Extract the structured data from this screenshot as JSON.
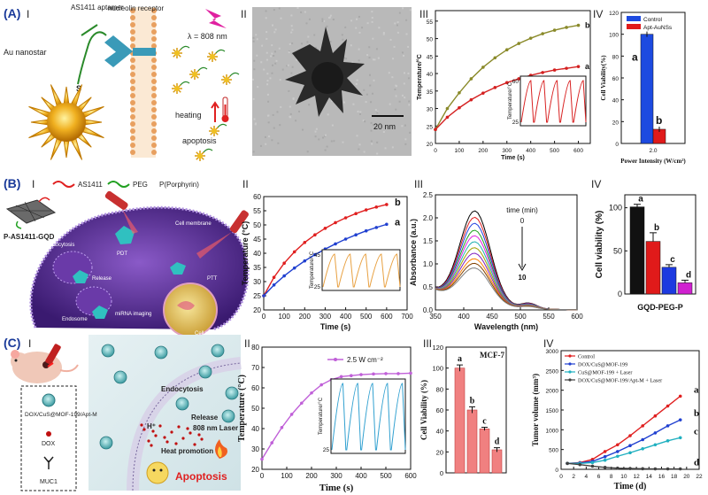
{
  "rowA": {
    "label": "(A)",
    "p1": {
      "num": "I",
      "aptamer": "AS1411 aptamer",
      "receptor": "nucleolin receptor",
      "nanostar": "Au nanostar",
      "s_label": "S",
      "laser": "λ = 808 nm",
      "heating": "heating",
      "apoptosis": "apoptosis"
    },
    "p2": {
      "num": "II",
      "scale": "20 nm"
    },
    "p3": {
      "num": "III"
    },
    "p4": {
      "num": "IV"
    }
  },
  "rowB": {
    "label": "(B)",
    "p1": {
      "num": "I",
      "legend": [
        "AS1411",
        "PEG",
        "P(Porphyrin)"
      ],
      "complex": "P-AS1411-GQD",
      "cell_membrane": "Cell membrane",
      "endocytosis": "Endocytosis",
      "endosome": "Endosome",
      "release": "Release",
      "mirna": "miRNA imaging",
      "nuclei": "Cell nuclei",
      "pdt": "PDT",
      "ptt": "PTT"
    },
    "p2": {
      "num": "II"
    },
    "p3": {
      "num": "III"
    },
    "p4": {
      "num": "IV"
    }
  },
  "rowC": {
    "label": "(C)",
    "p1": {
      "num": "I",
      "legend_title": "DOX/CuS@MOF-199/Apt-M",
      "legend_dox": "DOX",
      "legend_muc1": "MUC1",
      "endocytosis": "Endocytosis",
      "release": "Release",
      "laser": "808 nm Laser",
      "hplus": "H⁺",
      "heat": "Heat promotion",
      "apoptosis": "Apoptosis"
    },
    "p2": {
      "num": "II"
    },
    "p3": {
      "num": "III"
    },
    "p4": {
      "num": "IV"
    }
  },
  "chart_data": [
    {
      "id": "A-III",
      "type": "line",
      "xlabel": "Time (s)",
      "ylabel": "Temperature/°C",
      "xlim": [
        0,
        650
      ],
      "ylim": [
        20,
        58
      ],
      "xticks": [
        "0",
        "100",
        "200",
        "300",
        "400",
        "500",
        "600"
      ],
      "yticks": [
        "20",
        "25",
        "30",
        "35",
        "40",
        "45",
        "50",
        "55"
      ],
      "x": [
        0,
        50,
        100,
        150,
        200,
        250,
        300,
        350,
        400,
        450,
        500,
        550,
        600
      ],
      "series": [
        {
          "name": "b",
          "color": "#8a8a2a",
          "values": [
            24,
            30,
            34.5,
            38.5,
            41.8,
            44.5,
            46.8,
            48.6,
            50.1,
            51.4,
            52.4,
            53.2,
            53.8
          ]
        },
        {
          "name": "a",
          "color": "#d42020",
          "values": [
            24,
            27.5,
            30.2,
            32.5,
            34.4,
            36,
            37.4,
            38.5,
            39.5,
            40.3,
            41,
            41.5,
            42
          ]
        }
      ],
      "inset": {
        "ylabel": "Temperature/°C",
        "yticks": [
          "25",
          "60"
        ],
        "cycles": 5
      }
    },
    {
      "id": "A-IV",
      "type": "bar",
      "xlabel": "Power Intensity (W/cm²)",
      "ylabel": "Cell Viability(%)",
      "ylim": [
        0,
        120
      ],
      "yticks": [
        "0",
        "20",
        "40",
        "60",
        "80",
        "100",
        "120"
      ],
      "categories": [
        "2.0"
      ],
      "legend": [
        "Control",
        "Apt-AuNSs"
      ],
      "series": [
        {
          "name": "Control",
          "color": "#1d4ae0",
          "values": [
            100
          ],
          "label": "a"
        },
        {
          "name": "Apt-AuNSs",
          "color": "#e01a1a",
          "values": [
            13
          ],
          "label": "b"
        }
      ]
    },
    {
      "id": "B-II",
      "type": "line",
      "xlabel": "Time (s)",
      "ylabel": "Temperature (°C)",
      "xlim": [
        0,
        700
      ],
      "ylim": [
        20,
        60
      ],
      "xticks": [
        "0",
        "100",
        "200",
        "300",
        "400",
        "500",
        "600",
        "700"
      ],
      "yticks": [
        "20",
        "25",
        "30",
        "35",
        "40",
        "45",
        "50",
        "55",
        "60"
      ],
      "x": [
        0,
        50,
        100,
        150,
        200,
        250,
        300,
        350,
        400,
        450,
        500,
        550,
        600
      ],
      "series": [
        {
          "name": "b",
          "color": "#e02020",
          "values": [
            25,
            31.5,
            36.5,
            40.5,
            43.8,
            46.5,
            48.8,
            50.8,
            52.5,
            54,
            55.3,
            56.3,
            57.2
          ]
        },
        {
          "name": "a",
          "color": "#2040d0",
          "values": [
            25,
            28.8,
            32,
            34.8,
            37.3,
            39.5,
            41.5,
            43.3,
            45,
            46.5,
            47.9,
            49.1,
            50.2
          ]
        }
      ],
      "inset": {
        "ylabel": "Temperature/°C",
        "yticks": [
          "25",
          "45"
        ],
        "cycles": 5
      }
    },
    {
      "id": "B-III",
      "type": "line",
      "xlabel": "Wavelength (nm)",
      "ylabel": "Absorbance (a.u.)",
      "xlim": [
        350,
        600
      ],
      "ylim": [
        0,
        2.5
      ],
      "xticks": [
        "350",
        "400",
        "450",
        "500",
        "550",
        "600"
      ],
      "yticks": [
        "0.0",
        "0.5",
        "1.0",
        "1.5",
        "2.0",
        "2.5"
      ],
      "annotation": {
        "title": "time (min)",
        "start": "0",
        "end": "10"
      },
      "peak_nm": 420,
      "peaks": [
        2.02,
        1.88,
        1.75,
        1.6,
        1.48,
        1.35,
        1.22,
        1.1,
        0.98,
        0.88,
        0.78
      ],
      "colors": [
        "#000000",
        "#e02020",
        "#2040e0",
        "#20a020",
        "#e020e0",
        "#20b0b0",
        "#a0a000",
        "#8020c0",
        "#ff8000",
        "#804000",
        "#808080"
      ]
    },
    {
      "id": "B-IV",
      "type": "bar",
      "xlabel": "GQD-PEG-P",
      "ylabel": "Cell viability (%)",
      "ylim": [
        0,
        115
      ],
      "yticks": [
        "0",
        "50",
        "100"
      ],
      "categories": [
        "a",
        "b",
        "c",
        "d"
      ],
      "values": [
        101,
        61,
        31,
        13
      ],
      "errors": [
        3,
        10,
        3,
        3
      ],
      "colors": [
        "#111111",
        "#e01a1a",
        "#1d3ae0",
        "#d020d0"
      ]
    },
    {
      "id": "C-II",
      "type": "line",
      "xlabel": "Time (s)",
      "ylabel": "Temperature (°C)",
      "xlim": [
        0,
        600
      ],
      "ylim": [
        20,
        80
      ],
      "xticks": [
        "0",
        "100",
        "200",
        "300",
        "400",
        "500",
        "600"
      ],
      "yticks": [
        "20",
        "30",
        "40",
        "50",
        "60",
        "70",
        "80"
      ],
      "x": [
        0,
        40,
        80,
        120,
        160,
        200,
        240,
        280,
        320,
        360,
        400,
        450,
        500,
        550,
        600
      ],
      "series": [
        {
          "name": "2.5 W cm⁻²",
          "color": "#c060d8",
          "values": [
            25,
            33,
            40.5,
            47,
            52.5,
            57.5,
            61.5,
            64,
            65.5,
            66,
            66.5,
            66.8,
            67,
            67,
            67.2
          ]
        }
      ],
      "inset": {
        "ylabel": "Temperature/°C",
        "yticks": [
          "25"
        ],
        "cycles": 5
      }
    },
    {
      "id": "C-III",
      "type": "bar",
      "title": "MCF-7",
      "ylabel": "Cell Viability (%)",
      "ylim": [
        0,
        120
      ],
      "yticks": [
        "0",
        "20",
        "40",
        "60",
        "80",
        "100",
        "120"
      ],
      "categories": [
        "a",
        "b",
        "c",
        "d"
      ],
      "values": [
        100,
        60,
        42,
        22
      ],
      "errors": [
        3,
        3,
        1.5,
        2
      ],
      "color": "#f08080"
    },
    {
      "id": "C-IV",
      "type": "line",
      "xlabel": "Time (d)",
      "ylabel": "Tumor volume (mm³)",
      "xlim": [
        0,
        22
      ],
      "ylim": [
        0,
        3000
      ],
      "xticks": [
        "0",
        "2",
        "4",
        "6",
        "8",
        "10",
        "12",
        "14",
        "16",
        "18",
        "20",
        "22"
      ],
      "yticks": [
        "0",
        "500",
        "1000",
        "1500",
        "2000",
        "2500",
        "3000"
      ],
      "x": [
        1,
        3,
        5,
        7,
        9,
        11,
        13,
        15,
        17,
        19
      ],
      "series": [
        {
          "name": "Control",
          "label": "a",
          "color": "#e02020",
          "values": [
            150,
            170,
            250,
            450,
            620,
            850,
            1100,
            1350,
            1600,
            1850
          ]
        },
        {
          "name": "DOX/CuS@MOF-199",
          "label": "b",
          "color": "#2040d0",
          "values": [
            150,
            160,
            200,
            320,
            450,
            600,
            750,
            920,
            1100,
            1250
          ]
        },
        {
          "name": "CuS@MOF-199 + Laser",
          "label": "c",
          "color": "#20b0c0",
          "values": [
            150,
            150,
            170,
            230,
            330,
            420,
            520,
            620,
            720,
            800
          ]
        },
        {
          "name": "DOX/CuS@MOF-199/Apt-M + Laser",
          "label": "d",
          "color": "#404040",
          "values": [
            150,
            120,
            80,
            50,
            30,
            20,
            15,
            10,
            10,
            10
          ]
        }
      ]
    }
  ]
}
